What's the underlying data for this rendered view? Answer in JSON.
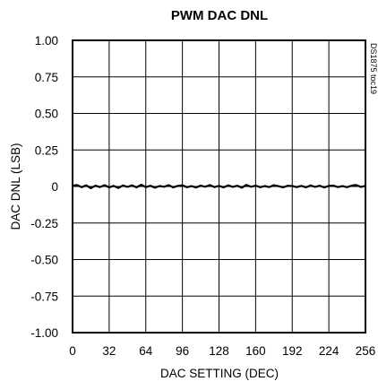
{
  "chart_data": {
    "type": "line",
    "title": "PWM DAC DNL",
    "xlabel": "DAC SETTING (DEC)",
    "ylabel": "DAC DNL (LSB)",
    "xlim": [
      0,
      256
    ],
    "ylim": [
      -1.0,
      1.0
    ],
    "x_ticks": [
      0,
      32,
      64,
      96,
      128,
      160,
      192,
      224,
      256
    ],
    "x_tick_labels": [
      "0",
      "32",
      "64",
      "96",
      "128",
      "160",
      "192",
      "224",
      "256"
    ],
    "y_ticks": [
      1.0,
      0.75,
      0.5,
      0.25,
      0,
      -0.25,
      -0.5,
      -0.75,
      -1.0
    ],
    "y_tick_labels": [
      "1.00",
      "0.75",
      "0.50",
      "0.25",
      "0",
      "-0.25",
      "-0.50",
      "-0.75",
      "-1.00"
    ],
    "grid": true,
    "figure_id": "DS1875 toc19",
    "series": [
      {
        "color": "#000000",
        "x": [
          0,
          4,
          8,
          12,
          16,
          20,
          24,
          28,
          32,
          36,
          40,
          44,
          48,
          52,
          56,
          60,
          64,
          68,
          72,
          76,
          80,
          84,
          88,
          92,
          96,
          100,
          104,
          108,
          112,
          116,
          120,
          124,
          128,
          132,
          136,
          140,
          144,
          148,
          152,
          156,
          160,
          164,
          168,
          172,
          176,
          180,
          184,
          188,
          192,
          196,
          200,
          204,
          208,
          212,
          216,
          220,
          224,
          228,
          232,
          236,
          240,
          244,
          248,
          252,
          256
        ],
        "y": [
          0.005,
          0.01,
          -0.005,
          0.008,
          -0.012,
          0.006,
          -0.004,
          0.009,
          -0.006,
          0.004,
          -0.01,
          0.007,
          -0.003,
          0.008,
          -0.006,
          0.012,
          -0.004,
          0.005,
          -0.008,
          0.003,
          -0.002,
          0.009,
          -0.006,
          0.004,
          0.008,
          -0.005,
          0.003,
          -0.007,
          0.006,
          -0.002,
          0.01,
          -0.004,
          0.004,
          -0.006,
          0.008,
          -0.003,
          0.005,
          -0.008,
          0.011,
          -0.002,
          0.006,
          -0.005,
          0.003,
          -0.004,
          0.009,
          0.002,
          -0.006,
          0.005,
          0.003,
          -0.004,
          0.004,
          -0.006,
          0.007,
          -0.003,
          0.005,
          -0.007,
          0.004,
          0.006,
          -0.004,
          0.003,
          -0.005,
          0.006,
          0.01,
          -0.003,
          0.004
        ]
      }
    ]
  }
}
